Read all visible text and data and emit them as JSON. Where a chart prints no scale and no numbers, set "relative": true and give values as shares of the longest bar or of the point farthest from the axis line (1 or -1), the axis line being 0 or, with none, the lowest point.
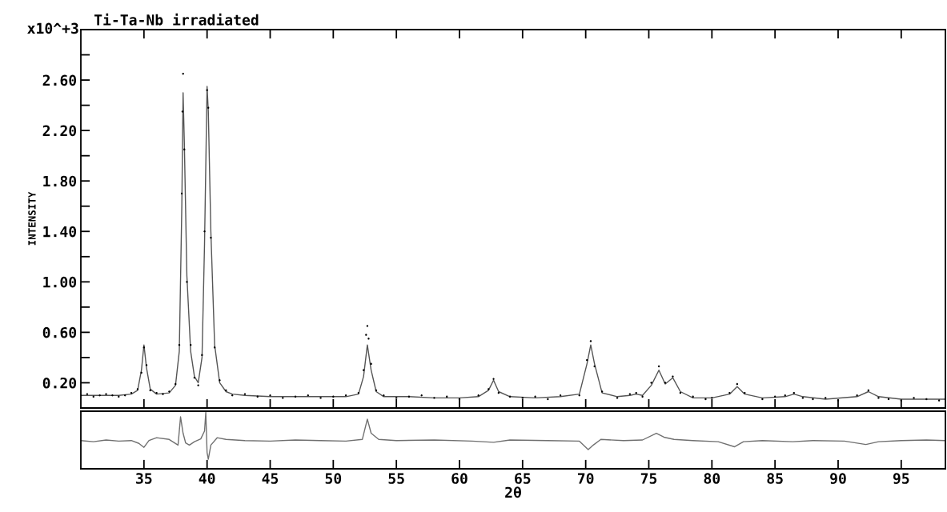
{
  "chart_data": [
    {
      "type": "line",
      "title": "Ti-Ta-Nb irradiated",
      "ylabel": "INTENSITY",
      "annotations": [
        "x10^+3"
      ],
      "tick_labels": "y",
      "xlim": [
        30,
        98.5
      ],
      "xticks": [
        35,
        40,
        45,
        50,
        55,
        60,
        65,
        70,
        75,
        80,
        85,
        90,
        95
      ],
      "ylim": [
        0,
        3.0
      ],
      "yticks": [
        {
          "value": 0.2,
          "label": "0.20"
        },
        {
          "value": 0.4,
          "label": null
        },
        {
          "value": 0.6,
          "label": "0.60"
        },
        {
          "value": 0.8,
          "label": null
        },
        {
          "value": 1.0,
          "label": "1.00"
        },
        {
          "value": 1.2,
          "label": null
        },
        {
          "value": 1.4,
          "label": "1.40"
        },
        {
          "value": 1.6,
          "label": null
        },
        {
          "value": 1.8,
          "label": "1.80"
        },
        {
          "value": 2.0,
          "label": null
        },
        {
          "value": 2.2,
          "label": "2.20"
        },
        {
          "value": 2.4,
          "label": null
        },
        {
          "value": 2.6,
          "label": "2.60"
        },
        {
          "value": 2.8,
          "label": null
        }
      ],
      "series": [
        {
          "color": "#555555",
          "x": [
            30,
            31,
            32,
            33,
            34,
            34.5,
            34.8,
            35.0,
            35.2,
            35.5,
            36,
            37,
            37.5,
            37.8,
            38.0,
            38.1,
            38.2,
            38.4,
            38.7,
            39.0,
            39.3,
            39.6,
            39.8,
            40.0,
            40.1,
            40.3,
            40.6,
            41.0,
            41.5,
            42,
            43,
            45,
            47,
            49,
            51,
            52.0,
            52.4,
            52.7,
            53.0,
            53.4,
            54,
            56,
            58,
            60,
            61.5,
            62.3,
            62.7,
            63.1,
            64,
            66,
            68,
            69.5,
            70.1,
            70.4,
            70.7,
            71.3,
            72.5,
            73.5,
            74.0,
            74.5,
            75.2,
            75.8,
            76.3,
            76.9,
            77.5,
            78.5,
            80,
            81.4,
            82.0,
            82.6,
            84,
            85.8,
            86.5,
            87.2,
            89,
            91.5,
            92.4,
            93.2,
            95,
            97,
            98.5
          ],
          "values": [
            0.1,
            0.1,
            0.1,
            0.1,
            0.11,
            0.14,
            0.3,
            0.5,
            0.32,
            0.15,
            0.11,
            0.12,
            0.18,
            0.45,
            1.6,
            2.5,
            2.1,
            1.05,
            0.45,
            0.25,
            0.2,
            0.4,
            1.3,
            2.55,
            2.35,
            1.4,
            0.5,
            0.2,
            0.13,
            0.11,
            0.1,
            0.09,
            0.09,
            0.09,
            0.09,
            0.11,
            0.25,
            0.5,
            0.3,
            0.13,
            0.09,
            0.09,
            0.08,
            0.08,
            0.09,
            0.14,
            0.22,
            0.13,
            0.09,
            0.08,
            0.09,
            0.11,
            0.35,
            0.5,
            0.35,
            0.12,
            0.09,
            0.1,
            0.11,
            0.1,
            0.18,
            0.3,
            0.19,
            0.24,
            0.13,
            0.08,
            0.08,
            0.11,
            0.17,
            0.11,
            0.08,
            0.09,
            0.11,
            0.09,
            0.07,
            0.09,
            0.13,
            0.09,
            0.07,
            0.07,
            0.07
          ]
        },
        {
          "type": "scatter",
          "color": "#000000",
          "x": [
            30,
            30.5,
            31,
            31.5,
            32,
            32.5,
            33,
            33.5,
            34,
            34.5,
            34.8,
            35.0,
            35.2,
            35.5,
            36,
            36.5,
            37,
            37.5,
            37.8,
            38.0,
            38.05,
            38.1,
            38.2,
            38.4,
            38.7,
            39.0,
            39.3,
            39.6,
            39.8,
            40.0,
            40.1,
            40.3,
            40.6,
            41.0,
            41.5,
            42,
            43,
            44,
            45,
            46,
            47,
            48,
            49,
            50,
            51,
            52.0,
            52.4,
            52.6,
            52.7,
            52.8,
            53.0,
            53.4,
            54,
            55,
            56,
            57,
            58,
            59,
            60,
            61.5,
            62.3,
            62.7,
            63.1,
            64,
            65,
            66,
            67,
            68,
            69.5,
            70.1,
            70.4,
            70.7,
            71.3,
            72.5,
            73.5,
            74.0,
            74.5,
            75.2,
            75.8,
            76.3,
            76.9,
            77.5,
            78.5,
            79.5,
            80,
            81.4,
            82.0,
            82.6,
            84,
            85,
            85.8,
            86.5,
            87.2,
            88,
            89,
            90,
            91.5,
            92.4,
            93.2,
            94,
            95,
            96,
            97,
            98,
            98.5
          ],
          "values": [
            0.1,
            0.11,
            0.09,
            0.1,
            0.11,
            0.1,
            0.09,
            0.1,
            0.12,
            0.15,
            0.28,
            0.48,
            0.34,
            0.14,
            0.12,
            0.11,
            0.13,
            0.19,
            0.5,
            1.7,
            2.35,
            2.65,
            2.05,
            1.0,
            0.5,
            0.24,
            0.18,
            0.42,
            1.4,
            2.52,
            2.38,
            1.35,
            0.48,
            0.22,
            0.14,
            0.1,
            0.11,
            0.09,
            0.1,
            0.08,
            0.09,
            0.1,
            0.08,
            0.09,
            0.1,
            0.12,
            0.3,
            0.58,
            0.65,
            0.55,
            0.35,
            0.14,
            0.1,
            0.08,
            0.09,
            0.1,
            0.08,
            0.09,
            0.07,
            0.1,
            0.15,
            0.23,
            0.12,
            0.09,
            0.08,
            0.09,
            0.07,
            0.1,
            0.1,
            0.38,
            0.53,
            0.33,
            0.13,
            0.08,
            0.11,
            0.12,
            0.09,
            0.2,
            0.33,
            0.2,
            0.25,
            0.12,
            0.09,
            0.07,
            0.08,
            0.12,
            0.19,
            0.12,
            0.07,
            0.09,
            0.1,
            0.12,
            0.08,
            0.07,
            0.08,
            0.06,
            0.1,
            0.14,
            0.08,
            0.07,
            0.06,
            0.08,
            0.07,
            0.06,
            0.07
          ]
        }
      ]
    },
    {
      "type": "line",
      "xlabel": "2θ",
      "relative": true,
      "tick_labels": "x",
      "xlim": [
        30,
        98.5
      ],
      "xticks": [
        35,
        40,
        45,
        50,
        55,
        60,
        65,
        70,
        75,
        80,
        85,
        90,
        95
      ],
      "series": [
        {
          "color": "#707070",
          "x": [
            30,
            31,
            32,
            33,
            34,
            34.6,
            35.0,
            35.4,
            36,
            37,
            37.7,
            37.9,
            38.1,
            38.3,
            38.6,
            39.0,
            39.5,
            39.8,
            39.9,
            40.0,
            40.1,
            40.3,
            40.8,
            41.5,
            43,
            45,
            47,
            49,
            51,
            52.3,
            52.7,
            53.0,
            53.6,
            55,
            58,
            61,
            62.7,
            64,
            67,
            69.5,
            70.2,
            70.6,
            71.2,
            73,
            74.5,
            75.6,
            76.2,
            77,
            78.5,
            80.5,
            81.8,
            82.5,
            84,
            86.4,
            88,
            90.5,
            92.2,
            93.2,
            95,
            97,
            98.5
          ],
          "values": [
            0.5,
            0.48,
            0.51,
            0.49,
            0.5,
            0.45,
            0.38,
            0.5,
            0.55,
            0.52,
            0.42,
            0.92,
            0.63,
            0.46,
            0.42,
            0.48,
            0.53,
            0.67,
            1.0,
            0.29,
            0.17,
            0.42,
            0.55,
            0.52,
            0.5,
            0.49,
            0.51,
            0.5,
            0.49,
            0.52,
            0.88,
            0.63,
            0.52,
            0.5,
            0.51,
            0.49,
            0.47,
            0.51,
            0.5,
            0.49,
            0.34,
            0.42,
            0.52,
            0.5,
            0.51,
            0.63,
            0.56,
            0.52,
            0.5,
            0.48,
            0.39,
            0.48,
            0.5,
            0.48,
            0.5,
            0.49,
            0.43,
            0.48,
            0.5,
            0.51,
            0.5
          ]
        }
      ]
    }
  ]
}
